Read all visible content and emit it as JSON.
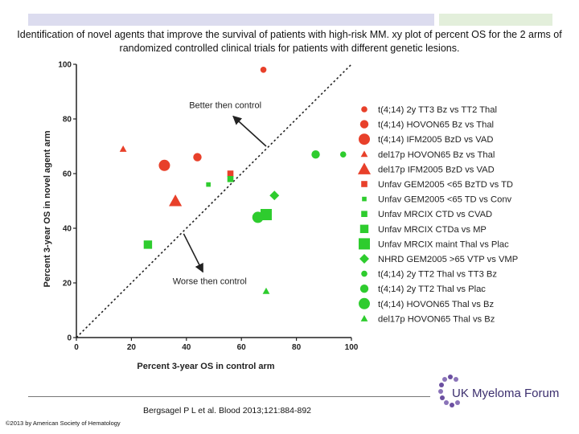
{
  "slide": {
    "title": "Identification of novel agents that improve the survival of patients with high-risk MM. xy plot of percent OS for the 2 arms of randomized controlled clinical trials for patients with different genetic lesions.",
    "citation": "Bergsagel P L et al. Blood 2013;121:884-892",
    "copyright": "©2013 by American Society of Hematology",
    "logo_text": "UK Myeloma Forum"
  },
  "chart_data": {
    "type": "scatter",
    "xlabel": "Percent 3-year OS in control arm",
    "ylabel": "Percent 3-year OS in novel agent arm",
    "xlim": [
      0,
      100
    ],
    "ylim": [
      0,
      100
    ],
    "xticks": [
      0,
      20,
      40,
      60,
      80,
      100
    ],
    "yticks": [
      0,
      20,
      40,
      60,
      80,
      100
    ],
    "legend_position": "right",
    "reference_line": "y = x (dotted diagonal)",
    "annotations": [
      {
        "text": "Better then control",
        "region": "above diagonal"
      },
      {
        "text": "Worse then control",
        "region": "below diagonal"
      }
    ],
    "colors": {
      "red": "#e8402a",
      "green": "#2ecc2e"
    },
    "series": [
      {
        "name": "t(4;14) 2y TT3 Bz vs TT2 Thal",
        "color": "red",
        "shape": "circle",
        "size": "small",
        "points": [
          [
            68,
            98
          ]
        ]
      },
      {
        "name": "t(4;14) HOVON65 Bz vs Thal",
        "color": "red",
        "shape": "circle",
        "size": "medium",
        "points": [
          [
            44,
            66
          ]
        ]
      },
      {
        "name": "t(4;14) IFM2005 BzD vs VAD",
        "color": "red",
        "shape": "circle",
        "size": "large",
        "points": [
          [
            32,
            63
          ]
        ]
      },
      {
        "name": "del17p HOVON65 Bz vs Thal",
        "color": "red",
        "shape": "triangle",
        "size": "small",
        "points": [
          [
            17,
            69
          ]
        ]
      },
      {
        "name": "del17p IFM2005 BzD vs VAD",
        "color": "red",
        "shape": "triangle",
        "size": "large",
        "points": [
          [
            36,
            50
          ]
        ]
      },
      {
        "name": "Unfav GEM2005 <65 BzTD vs TD",
        "color": "red",
        "shape": "square",
        "size": "small",
        "points": [
          [
            56,
            60
          ]
        ]
      },
      {
        "name": "Unfav GEM2005 <65 TD vs Conv",
        "color": "green",
        "shape": "square",
        "size": "tiny",
        "points": [
          [
            48,
            56
          ]
        ]
      },
      {
        "name": "Unfav MRCIX CTD vs CVAD",
        "color": "green",
        "shape": "square",
        "size": "small",
        "points": [
          [
            56,
            58
          ]
        ]
      },
      {
        "name": "Unfav MRCIX CTDa vs MP",
        "color": "green",
        "shape": "square",
        "size": "medium",
        "points": [
          [
            26,
            34
          ]
        ]
      },
      {
        "name": "Unfav MRCIX maint Thal vs Plac",
        "color": "green",
        "shape": "square",
        "size": "large",
        "points": [
          [
            69,
            45
          ]
        ]
      },
      {
        "name": "NHRD GEM2005 >65 VTP vs VMP",
        "color": "green",
        "shape": "diamond",
        "size": "medium",
        "points": [
          [
            72,
            52
          ]
        ]
      },
      {
        "name": "t(4;14) 2y TT2 Thal vs TT3 Bz",
        "color": "green",
        "shape": "circle",
        "size": "small",
        "points": [
          [
            97,
            67
          ]
        ]
      },
      {
        "name": "t(4;14) 2y TT2 Thal vs Plac",
        "color": "green",
        "shape": "circle",
        "size": "medium",
        "points": [
          [
            87,
            67
          ]
        ]
      },
      {
        "name": "t(4;14) HOVON65 Thal vs Bz",
        "color": "green",
        "shape": "circle",
        "size": "large",
        "points": [
          [
            66,
            44
          ]
        ]
      },
      {
        "name": "del17p HOVON65 Thal vs Bz",
        "color": "green",
        "shape": "triangle",
        "size": "small",
        "points": [
          [
            69,
            17
          ]
        ]
      }
    ]
  }
}
